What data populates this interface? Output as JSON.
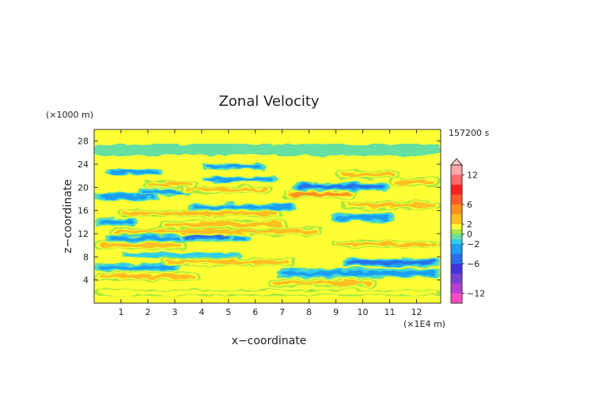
{
  "chart_data": {
    "type": "heatmap",
    "title": "Zonal Velocity",
    "xlabel": "x−coordinate",
    "ylabel": "z−coordinate",
    "x_unit_label": "(×1E4 m)",
    "y_unit_label": "(×1000 m)",
    "time_label": "157200 s",
    "xlim": [
      0,
      12.9
    ],
    "ylim": [
      0,
      30
    ],
    "x_ticks": [
      {
        "value": 1,
        "label": "1"
      },
      {
        "value": 2,
        "label": "2"
      },
      {
        "value": 3,
        "label": "3"
      },
      {
        "value": 4,
        "label": "4"
      },
      {
        "value": 5,
        "label": "5"
      },
      {
        "value": 6,
        "label": "6"
      },
      {
        "value": 7,
        "label": "7"
      },
      {
        "value": 8,
        "label": "8"
      },
      {
        "value": 9,
        "label": "9"
      },
      {
        "value": 10,
        "label": "10"
      },
      {
        "value": 11,
        "label": "11"
      },
      {
        "value": 12,
        "label": "12"
      }
    ],
    "y_ticks": [
      {
        "value": 4,
        "label": "4"
      },
      {
        "value": 8,
        "label": "8"
      },
      {
        "value": 12,
        "label": "12"
      },
      {
        "value": 16,
        "label": "16"
      },
      {
        "value": 20,
        "label": "20"
      },
      {
        "value": 24,
        "label": "24"
      },
      {
        "value": 28,
        "label": "28"
      }
    ],
    "colorbar": {
      "levels": [
        -14,
        -12,
        -10,
        -8,
        -6,
        -4,
        -2,
        -1,
        0,
        1,
        2,
        4,
        6,
        8,
        10,
        12,
        14
      ],
      "colors": [
        "#ff4dc4",
        "#b53fd1",
        "#7a3fd1",
        "#3f35d8",
        "#2a6fe8",
        "#1f9ff0",
        "#33cfe8",
        "#66e0a0",
        "#a8e840",
        "#ffff33",
        "#ffc020",
        "#ff9020",
        "#ff5a2a",
        "#ff2020",
        "#ff6a6a",
        "#ffa8a8"
      ],
      "tick_labels": [
        {
          "value": -12,
          "label": "−12"
        },
        {
          "value": -6,
          "label": "−6"
        },
        {
          "value": -2,
          "label": "−2"
        },
        {
          "value": 0,
          "label": "0"
        },
        {
          "value": 2,
          "label": "2"
        },
        {
          "value": 6,
          "label": "6"
        },
        {
          "value": 12,
          "label": "12"
        }
      ]
    },
    "bands": [
      {
        "z": 1.8,
        "width": 0.6,
        "x0": 0.0,
        "x1": 12.9,
        "value": 1.8
      },
      {
        "z": 3.5,
        "width": 0.7,
        "x0": 6.5,
        "x1": 10.5,
        "value": 3.2
      },
      {
        "z": 4.6,
        "width": 0.7,
        "x0": 0.0,
        "x1": 4.0,
        "value": 3.0
      },
      {
        "z": 5.2,
        "width": 0.8,
        "x0": 6.8,
        "x1": 12.9,
        "value": -3.0
      },
      {
        "z": 6.2,
        "width": 0.7,
        "x0": 0.0,
        "x1": 3.2,
        "value": -2.6
      },
      {
        "z": 7.1,
        "width": 0.7,
        "x0": 2.5,
        "x1": 7.5,
        "value": 3.2
      },
      {
        "z": 7.0,
        "width": 0.7,
        "x0": 9.2,
        "x1": 12.9,
        "value": -4.0
      },
      {
        "z": 8.3,
        "width": 0.5,
        "x0": 1.0,
        "x1": 5.5,
        "value": -1.8
      },
      {
        "z": 10.0,
        "width": 0.7,
        "x0": 0.0,
        "x1": 3.5,
        "value": 2.6
      },
      {
        "z": 10.2,
        "width": 0.6,
        "x0": 8.8,
        "x1": 12.9,
        "value": 3.2
      },
      {
        "z": 11.2,
        "width": 0.6,
        "x0": 0.4,
        "x1": 5.8,
        "value": -2.4
      },
      {
        "z": 11.5,
        "width": 0.7,
        "x0": 3.2,
        "x1": 5.2,
        "value": -4.0
      },
      {
        "z": 12.4,
        "width": 0.7,
        "x0": 0.6,
        "x1": 8.5,
        "value": 3.0
      },
      {
        "z": 13.6,
        "width": 0.8,
        "x0": 2.4,
        "x1": 7.2,
        "value": 2.8
      },
      {
        "z": 14.0,
        "width": 0.6,
        "x0": 0.0,
        "x1": 1.6,
        "value": -3.0
      },
      {
        "z": 14.8,
        "width": 0.8,
        "x0": 8.8,
        "x1": 11.2,
        "value": -3.8
      },
      {
        "z": 15.5,
        "width": 0.6,
        "x0": 0.8,
        "x1": 7.0,
        "value": 3.0
      },
      {
        "z": 16.6,
        "width": 0.6,
        "x0": 3.5,
        "x1": 7.5,
        "value": -2.2
      },
      {
        "z": 16.9,
        "width": 0.7,
        "x0": 9.2,
        "x1": 12.9,
        "value": 3.0
      },
      {
        "z": 18.4,
        "width": 0.6,
        "x0": 0.0,
        "x1": 2.4,
        "value": -3.2
      },
      {
        "z": 18.8,
        "width": 0.7,
        "x0": 7.0,
        "x1": 9.8,
        "value": 4.8
      },
      {
        "z": 19.2,
        "width": 0.6,
        "x0": 1.6,
        "x1": 3.6,
        "value": -2.8
      },
      {
        "z": 19.6,
        "width": 0.6,
        "x0": 3.2,
        "x1": 6.6,
        "value": 3.0
      },
      {
        "z": 20.1,
        "width": 0.7,
        "x0": 7.4,
        "x1": 11.0,
        "value": -4.6
      },
      {
        "z": 20.6,
        "width": 0.6,
        "x0": 1.8,
        "x1": 3.8,
        "value": 3.0
      },
      {
        "z": 20.9,
        "width": 0.7,
        "x0": 11.0,
        "x1": 12.9,
        "value": 2.8
      },
      {
        "z": 21.4,
        "width": 0.5,
        "x0": 4.0,
        "x1": 6.8,
        "value": -2.2
      },
      {
        "z": 22.2,
        "width": 0.7,
        "x0": 9.0,
        "x1": 11.4,
        "value": 3.2
      },
      {
        "z": 22.6,
        "width": 0.5,
        "x0": 0.4,
        "x1": 2.6,
        "value": -2.0
      },
      {
        "z": 23.6,
        "width": 0.5,
        "x0": 4.0,
        "x1": 6.4,
        "value": -2.0
      },
      {
        "z": 26.5,
        "width": 1.0,
        "x0": 0.0,
        "x1": 12.9,
        "value": -0.6
      }
    ]
  }
}
